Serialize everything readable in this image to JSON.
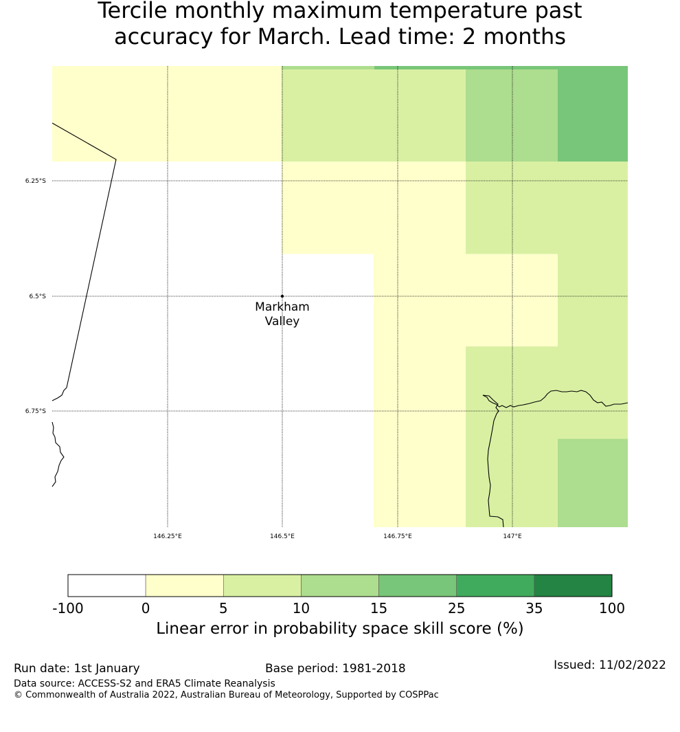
{
  "title": {
    "line1": "Tercile monthly maximum temperature past",
    "line2": "accuracy for March. Lead time: 2 months"
  },
  "map": {
    "lat_labels": [
      "6.25°S",
      "6.5°S",
      "6.75°S"
    ],
    "lon_labels": [
      "146.25°E",
      "146.5°E",
      "146.75°E",
      "147°E"
    ],
    "station": {
      "name_line1": "Markham",
      "name_line2": "Valley",
      "lon": 146.5,
      "lat": -6.5
    },
    "grid_extent": {
      "lon_min": 146.0,
      "lon_max": 147.25,
      "lat_top": -6.0,
      "lat_bottom": -7.0
    },
    "cells": [
      {
        "lon": 146.0,
        "lat": -6.0,
        "bin": 1
      },
      {
        "lon": 146.2,
        "lat": -6.0,
        "bin": 1
      },
      {
        "lon": 146.4,
        "lat": -6.0,
        "bin": 1
      },
      {
        "lon": 146.6,
        "lat": -6.0,
        "bin": 2
      },
      {
        "lon": 146.8,
        "lat": -6.0,
        "bin": 2
      },
      {
        "lon": 147.0,
        "lat": -6.0,
        "bin": 3
      },
      {
        "lon": 147.2,
        "lat": -6.0,
        "bin": 4
      },
      {
        "lon": 146.6,
        "lat": -6.2,
        "bin": 1
      },
      {
        "lon": 146.8,
        "lat": -6.2,
        "bin": 1
      },
      {
        "lon": 147.0,
        "lat": -6.2,
        "bin": 2
      },
      {
        "lon": 147.2,
        "lat": -6.2,
        "bin": 2
      },
      {
        "lon": 146.8,
        "lat": -6.4,
        "bin": 1
      },
      {
        "lon": 147.0,
        "lat": -6.4,
        "bin": 1
      },
      {
        "lon": 147.2,
        "lat": -6.4,
        "bin": 2
      },
      {
        "lon": 146.8,
        "lat": -6.6,
        "bin": 1
      },
      {
        "lon": 147.0,
        "lat": -6.6,
        "bin": 2
      },
      {
        "lon": 147.2,
        "lat": -6.6,
        "bin": 2
      },
      {
        "lon": 146.8,
        "lat": -6.8,
        "bin": 1
      },
      {
        "lon": 147.0,
        "lat": -6.8,
        "bin": 2
      },
      {
        "lon": 147.2,
        "lat": -6.8,
        "bin": 3
      }
    ]
  },
  "colorbar": {
    "bounds": [
      "-100",
      "0",
      "5",
      "10",
      "15",
      "25",
      "35",
      "100"
    ],
    "colors": [
      "#ffffff",
      "#ffffcc",
      "#d9f0a3",
      "#addd8e",
      "#78c679",
      "#41ab5d",
      "#238443"
    ],
    "label": "Linear error in probability space skill score (%)"
  },
  "footer": {
    "run_date": "Run date: 1st January",
    "base_period": "Base period: 1981-2018",
    "issued": "Issued: 11/02/2022",
    "data_source": "Data source: ACCESS-S2 and ERA5 Climate Reanalysis",
    "copyright": "© Commonwealth of Australia 2022, Australian Bureau of Meteorology, Supported by COSPPac"
  }
}
